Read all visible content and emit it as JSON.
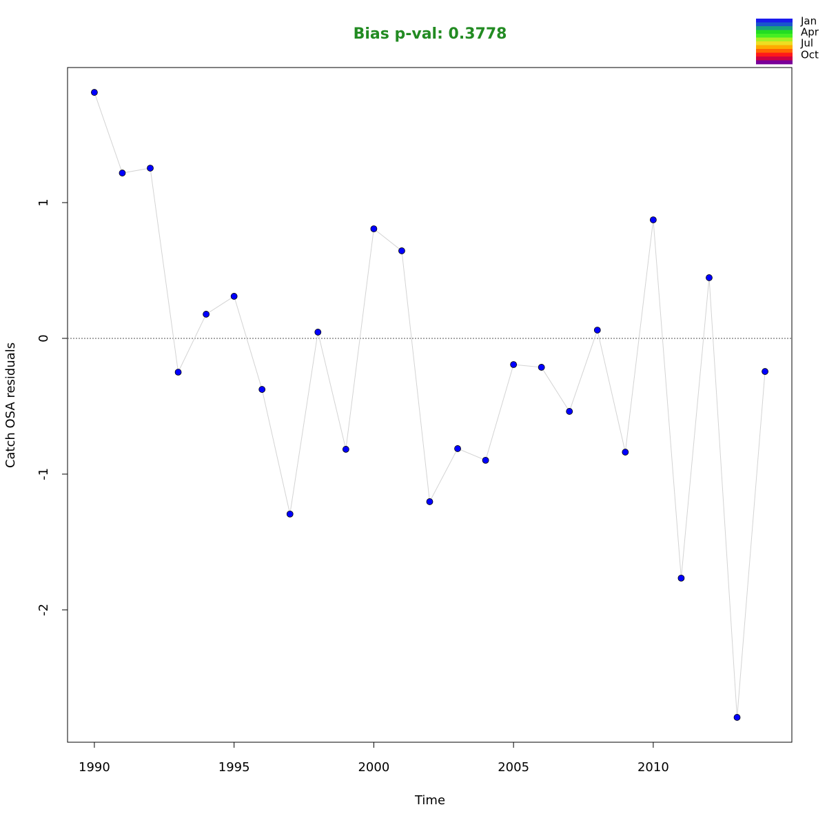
{
  "chart_data": {
    "type": "line",
    "title": "Bias p-val: 0.3778",
    "title_color": "#228b22",
    "xlabel": "Time",
    "ylabel": "Catch OSA residuals",
    "x": [
      1990,
      1991,
      1992,
      1993,
      1994,
      1995,
      1996,
      1997,
      1998,
      1999,
      2000,
      2001,
      2002,
      2003,
      2004,
      2005,
      2006,
      2007,
      2008,
      2009,
      2010,
      2011,
      2012,
      2013,
      2014
    ],
    "values": [
      1.812,
      1.218,
      1.254,
      -0.249,
      0.178,
      0.31,
      -0.376,
      -1.294,
      0.046,
      -0.817,
      0.807,
      0.645,
      -1.203,
      -0.812,
      -0.898,
      -0.193,
      -0.213,
      -0.538,
      0.061,
      -0.838,
      0.873,
      -1.766,
      0.447,
      -2.792,
      -0.244
    ],
    "line_color": "#d3d3d3",
    "point_color": "#0000ff",
    "hline": 0,
    "xlim": [
      1989.04,
      2014.96
    ],
    "xticks": [
      1990,
      1995,
      2000,
      2005,
      2010
    ],
    "ylim": [
      -2.975,
      1.995
    ],
    "yticks": [
      -2,
      -1,
      0,
      1
    ],
    "month_legend": {
      "labels": [
        "Jan",
        "Apr",
        "Jul",
        "Oct"
      ],
      "colors": [
        "#1a1aee",
        "#1a55cc",
        "#1aa07a",
        "#22dd22",
        "#44ee22",
        "#aaee22",
        "#eedd22",
        "#ffaa00",
        "#ff6600",
        "#ff1a1a",
        "#cc0044",
        "#7a0099"
      ]
    }
  }
}
